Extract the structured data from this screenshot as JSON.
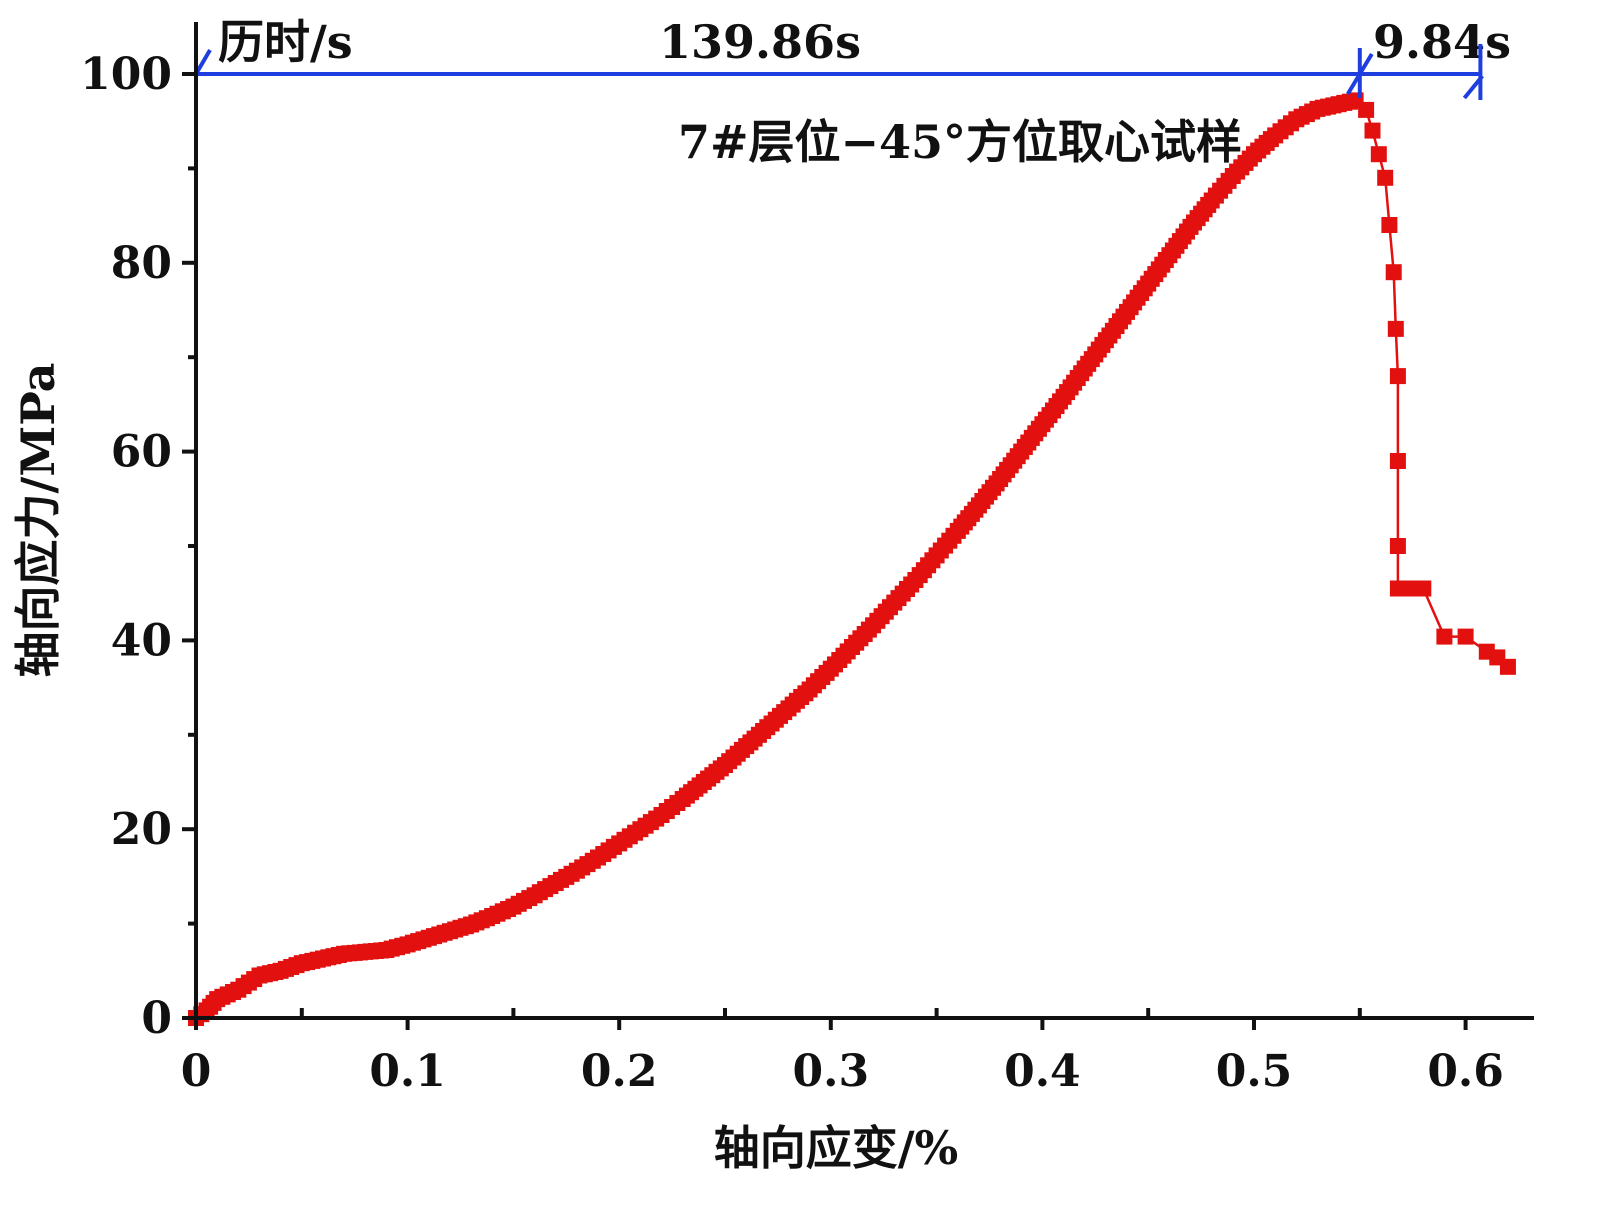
{
  "chart_data": {
    "type": "scatter",
    "title": "7#层位−45°方位取心试样",
    "xlabel": "轴向应变/%",
    "ylabel": "轴向应力/MPa",
    "xlim": [
      0,
      0.63
    ],
    "ylim": [
      0,
      100
    ],
    "xticks": [
      0,
      0.1,
      0.2,
      0.3,
      0.4,
      0.5,
      0.6
    ],
    "xtick_labels": [
      "0",
      "0.1",
      "0.2",
      "0.3",
      "0.4",
      "0.5",
      "0.6"
    ],
    "yticks": [
      0,
      20,
      40,
      60,
      80,
      100
    ],
    "ytick_labels": [
      "0",
      "20",
      "40",
      "60",
      "80",
      "100"
    ],
    "grid": false,
    "series": [
      {
        "color": "#e31010",
        "marker": "square",
        "x": [
          0,
          0.005,
          0.01,
          0.02,
          0.03,
          0.04,
          0.05,
          0.06,
          0.07,
          0.08,
          0.09,
          0.1,
          0.11,
          0.12,
          0.13,
          0.14,
          0.15,
          0.16,
          0.17,
          0.18,
          0.19,
          0.2,
          0.21,
          0.22,
          0.23,
          0.24,
          0.25,
          0.26,
          0.27,
          0.28,
          0.29,
          0.3,
          0.31,
          0.32,
          0.33,
          0.34,
          0.35,
          0.36,
          0.37,
          0.38,
          0.39,
          0.4,
          0.41,
          0.42,
          0.43,
          0.44,
          0.45,
          0.46,
          0.47,
          0.48,
          0.49,
          0.5,
          0.51,
          0.52,
          0.53,
          0.54,
          0.548,
          0.553,
          0.556,
          0.559,
          0.562,
          0.564,
          0.566,
          0.567,
          0.568,
          0.568,
          0.568,
          0.568,
          0.575,
          0.58,
          0.59,
          0.6,
          0.61,
          0.615,
          0.62
        ],
        "y": [
          0,
          0.8,
          2,
          3,
          4.5,
          5,
          5.8,
          6.3,
          6.8,
          7,
          7.2,
          7.8,
          8.5,
          9.2,
          9.9,
          10.8,
          11.8,
          13,
          14.3,
          15.6,
          17,
          18.5,
          20,
          21.5,
          23.2,
          25,
          26.8,
          28.8,
          30.8,
          32.8,
          34.8,
          37,
          39.3,
          41.6,
          44,
          46.4,
          49,
          51.6,
          54.3,
          57.1,
          60,
          62.9,
          65.8,
          68.8,
          71.8,
          74.8,
          77.8,
          80.8,
          83.8,
          86.6,
          89.2,
          91.5,
          93.5,
          95.2,
          96.3,
          96.8,
          97.2,
          96.2,
          94,
          91.5,
          89,
          84,
          79,
          73,
          68,
          59,
          50,
          45.5,
          45.5,
          45.5,
          40.4,
          40.4,
          38.8,
          38.2,
          37.2
        ]
      }
    ],
    "annotations": {
      "duration_label": "历时/s",
      "segment1_label": "139.86s",
      "segment1_x": [
        0,
        0.55
      ],
      "segment2_label": "9.84s",
      "segment2_x": [
        0.55,
        0.607
      ],
      "level_y": 100,
      "color": "#1f3ee0"
    }
  }
}
